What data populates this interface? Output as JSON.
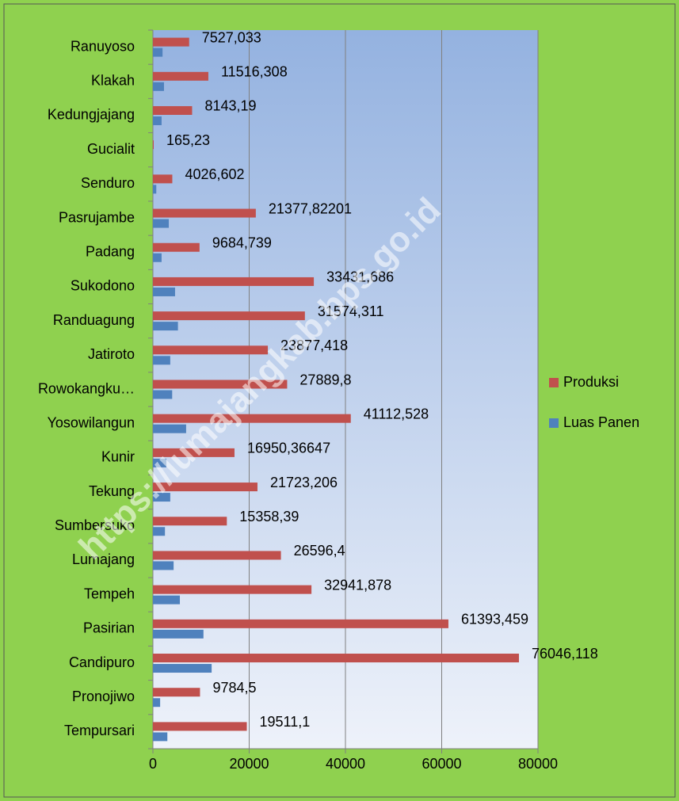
{
  "chart_data": {
    "type": "bar",
    "orientation": "horizontal",
    "watermark": "https://lumajangkab.bps.go.id",
    "categories": [
      "Ranuyoso",
      "Klakah",
      "Kedungjajang",
      "Gucialit",
      "Senduro",
      "Pasrujambe",
      "Padang",
      "Sukodono",
      "Randuagung",
      "Jatiroto",
      "Rowokangku…",
      "Yosowilangun",
      "Kunir",
      "Tekung",
      "Sumbersuko",
      "Lumajang",
      "Tempeh",
      "Pasirian",
      "Candipuro",
      "Pronojiwo",
      "Tempursari"
    ],
    "series": [
      {
        "name": "Produksi",
        "color": "#c0504d",
        "values": [
          7527.033,
          11516.308,
          8143.19,
          165.23,
          4026.602,
          21377.82201,
          9684.739,
          33431.686,
          31574.311,
          23877.418,
          27889.8,
          41112.528,
          16950.36647,
          21723.206,
          15358.39,
          26596.4,
          32941.878,
          61393.459,
          76046.118,
          9784.5,
          19511.1
        ],
        "value_labels": [
          "7527,033",
          "11516,308",
          "8143,19",
          "165,23",
          "4026,602",
          "21377,82201",
          "9684,739",
          "33431,686",
          "31574,311",
          "23877,418",
          "27889,8",
          "41112,528",
          "16950,36647",
          "21723,206",
          "15358,39",
          "26596,4",
          "32941,878",
          "61393,459",
          "76046,118",
          "9784,5",
          "19511,1"
        ]
      },
      {
        "name": "Luas Panen",
        "color": "#4f81bd",
        "values": [
          2000,
          2300,
          1800,
          20,
          700,
          3300,
          1800,
          4600,
          5200,
          3600,
          4000,
          6900,
          2800,
          3600,
          2500,
          4300,
          5600,
          10500,
          12200,
          1500,
          3000
        ]
      }
    ],
    "xlim": [
      0,
      80000
    ],
    "xticks": [
      0,
      20000,
      40000,
      60000,
      80000
    ],
    "grid": true,
    "legend": "right"
  }
}
